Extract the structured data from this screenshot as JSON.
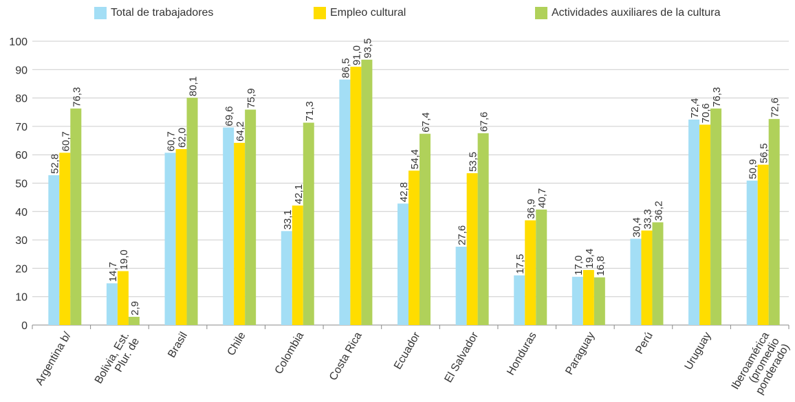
{
  "colors": {
    "series": [
      "#a3def5",
      "#ffdd00",
      "#b0d15a"
    ],
    "axis": "#888888",
    "grid": "#cccccc",
    "text": "#333333"
  },
  "chart_data": {
    "type": "bar",
    "title": "",
    "xlabel": "",
    "ylabel": "",
    "ylim": [
      0,
      100
    ],
    "yticks": [
      0,
      10,
      20,
      30,
      40,
      50,
      60,
      70,
      80,
      90,
      100
    ],
    "grid": true,
    "legend_position": "top",
    "categories": [
      "Argentina b/",
      "Bolivia, Est.\nPlur. de",
      "Brasil",
      "Chile",
      "Colombia",
      "Costa Rica",
      "Ecuador",
      "El Salvador",
      "Honduras",
      "Paraguay",
      "Perú",
      "Uruguay",
      "Iberoamérica\n(promedio\nponderado)"
    ],
    "series": [
      {
        "name": "Total de trabajadores",
        "values": [
          52.8,
          14.7,
          60.7,
          69.6,
          33.1,
          86.5,
          42.8,
          27.6,
          17.5,
          17.0,
          30.4,
          72.4,
          50.9
        ],
        "labels": [
          "52,8",
          "14,7",
          "60,7",
          "69,6",
          "33,1",
          "86,5",
          "42,8",
          "27,6",
          "17,5",
          "17,0",
          "30,4",
          "72,4",
          "50,9"
        ]
      },
      {
        "name": "Empleo cultural",
        "values": [
          60.7,
          19.0,
          62.0,
          64.2,
          42.1,
          91.0,
          54.4,
          53.5,
          36.9,
          19.4,
          33.3,
          70.6,
          56.5
        ],
        "labels": [
          "60,7",
          "19,0",
          "62,0",
          "64,2",
          "42,1",
          "91,0",
          "54,4",
          "53,5",
          "36,9",
          "19,4",
          "33,3",
          "70,6",
          "56,5"
        ]
      },
      {
        "name": "Actividades auxiliares de la cultura",
        "values": [
          76.3,
          2.9,
          80.1,
          75.9,
          71.3,
          93.5,
          67.4,
          67.6,
          40.7,
          16.8,
          36.2,
          76.3,
          72.6
        ],
        "labels": [
          "76,3",
          "2,9",
          "80,1",
          "75,9",
          "71,3",
          "93,5",
          "67,4",
          "67,6",
          "40,7",
          "16,8",
          "36,2",
          "76,3",
          "72,6"
        ]
      }
    ]
  }
}
